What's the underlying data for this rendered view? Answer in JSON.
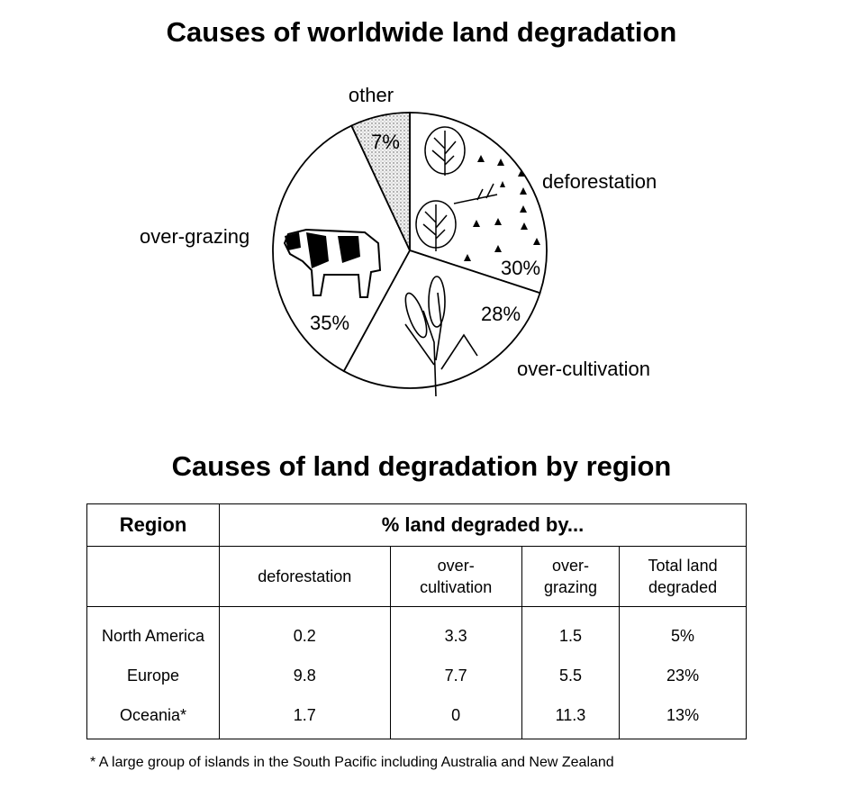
{
  "chart_data": [
    {
      "type": "pie",
      "title": "Causes of worldwide land degradation",
      "slices": [
        {
          "label": "deforestation",
          "value": 30,
          "value_label": "30%"
        },
        {
          "label": "over-cultivation",
          "value": 28,
          "value_label": "28%"
        },
        {
          "label": "over-grazing",
          "value": 35,
          "value_label": "35%"
        },
        {
          "label": "other",
          "value": 7,
          "value_label": "7%"
        }
      ],
      "slice_icons": [
        "trees-and-stumps",
        "wheat",
        "cow",
        "dotted-fill"
      ]
    },
    {
      "type": "table",
      "title": "Causes of land degradation by region",
      "header": {
        "region": "Region",
        "group": "% land degraded by..."
      },
      "columns": [
        "deforestation",
        "over-cultivation",
        "over-grazing",
        "Total land degraded"
      ],
      "column_lines": [
        [
          "deforestation"
        ],
        [
          "over-",
          "cultivation"
        ],
        [
          "over-",
          "grazing"
        ],
        [
          "Total land",
          "degraded"
        ]
      ],
      "rows": [
        {
          "region": "North America",
          "values": [
            "0.2",
            "3.3",
            "1.5",
            "5%"
          ]
        },
        {
          "region": "Europe",
          "values": [
            "9.8",
            "7.7",
            "5.5",
            "23%"
          ]
        },
        {
          "region": "Oceania*",
          "values": [
            "1.7",
            "0",
            "11.3",
            "13%"
          ]
        }
      ],
      "footnote": "* A large group of islands in the South Pacific including Australia and New Zealand"
    }
  ]
}
